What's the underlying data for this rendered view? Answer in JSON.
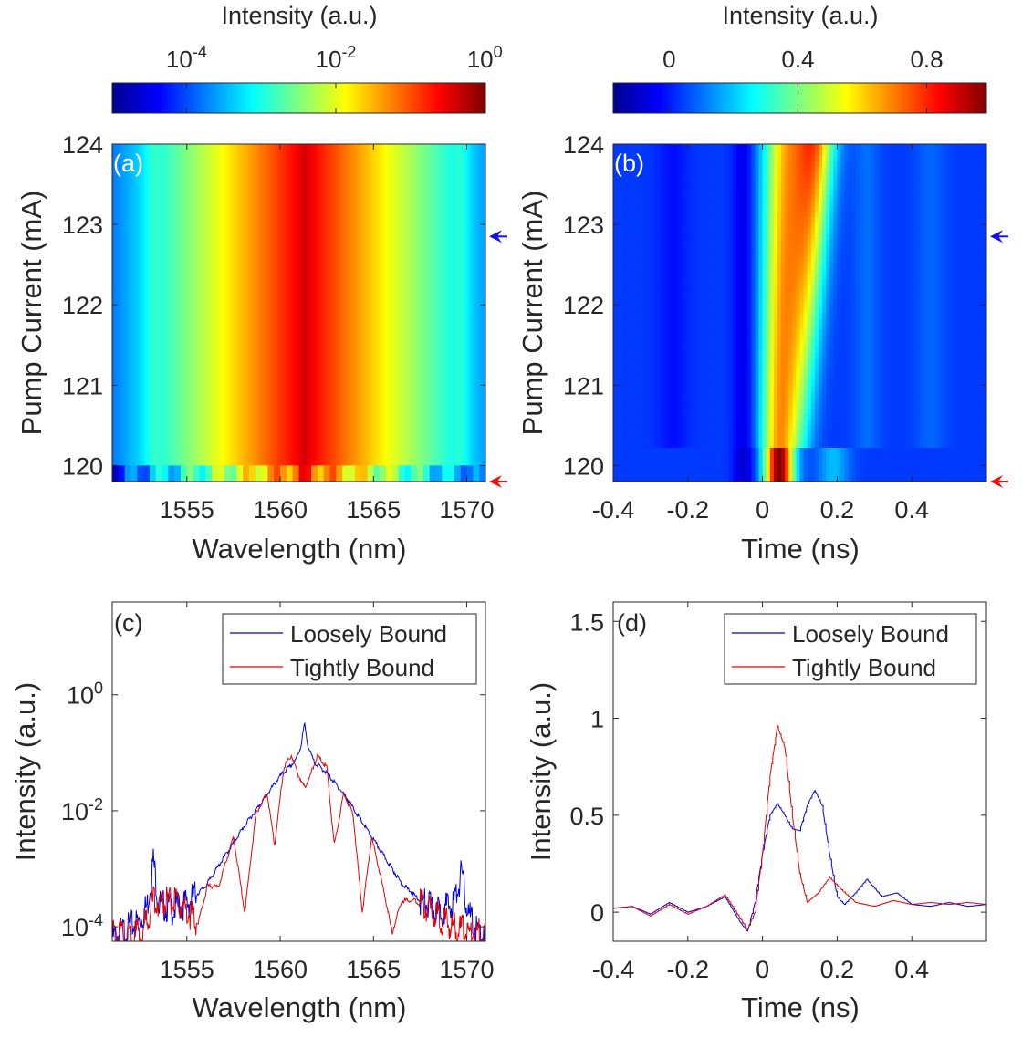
{
  "colorbars": [
    {
      "label": "Intensity (a.u.)",
      "ticks": [
        {
          "base": "10",
          "exp": "-4",
          "pos": 0.199
        },
        {
          "base": "10",
          "exp": "-2",
          "pos": 0.599
        },
        {
          "base": "10",
          "exp": "0",
          "pos": 0.998
        }
      ],
      "scale": "log",
      "range_text": "1e-4.8 to 1e0",
      "colormap": "jet"
    },
    {
      "label": "Intensity (a.u.)",
      "ticks": [
        {
          "text": "0",
          "pos": 0.15
        },
        {
          "text": "0.4",
          "pos": 0.495
        },
        {
          "text": "0.8",
          "pos": 0.84
        }
      ],
      "scale": "linear",
      "range": [
        -0.17,
        0.99
      ],
      "colormap": "jet"
    }
  ],
  "chart_data": [
    {
      "panel": "(a)",
      "type": "heatmap",
      "xlabel": "Wavelength (nm)",
      "ylabel": "Pump Current (mA)",
      "xlim": [
        1551,
        1571
      ],
      "ylim": [
        119.8,
        124
      ],
      "xticks": [
        "1555",
        "1560",
        "1565",
        "1570"
      ],
      "xtick_values": [
        1555,
        1560,
        1565,
        1570
      ],
      "yticks": [
        "120",
        "121",
        "122",
        "123",
        "124"
      ],
      "ytick_values": [
        120,
        121,
        122,
        123,
        124
      ],
      "peak_wavelength": 1561.3,
      "sideband_wavelengths": [
        1553.2,
        1569.7
      ],
      "colorscale": "log",
      "markers": [
        {
          "color": "#1010ee",
          "pump_current": 122.85
        },
        {
          "color": "#ee1010",
          "pump_current": 119.8
        }
      ]
    },
    {
      "panel": "(b)",
      "type": "heatmap",
      "xlabel": "Time (ns)",
      "ylabel": "Pump Current (mA)",
      "xlim": [
        -0.4,
        0.6
      ],
      "ylim": [
        119.8,
        124
      ],
      "xticks": [
        "-0.4",
        "-0.2",
        "0",
        "0.2",
        "0.4"
      ],
      "xtick_values": [
        -0.4,
        -0.2,
        0,
        0.2,
        0.4
      ],
      "yticks": [
        "120",
        "121",
        "122",
        "123",
        "124"
      ],
      "ytick_values": [
        120,
        121,
        122,
        123,
        124
      ],
      "colorscale": "linear",
      "markers": [
        {
          "color": "#1010ee",
          "pump_current": 122.85
        },
        {
          "color": "#ee1010",
          "pump_current": 119.8
        }
      ]
    },
    {
      "panel": "(c)",
      "type": "line",
      "xlabel": "Wavelength (nm)",
      "ylabel": "Intensity (a.u.)",
      "xlim": [
        1551,
        1571
      ],
      "ylim_log10": [
        -4.25,
        1.6
      ],
      "yscale": "log",
      "xticks": [
        "1555",
        "1560",
        "1565",
        "1570"
      ],
      "xtick_values": [
        1555,
        1560,
        1565,
        1570
      ],
      "yticks": [
        {
          "base": "10",
          "exp": "-4",
          "value": -4
        },
        {
          "base": "10",
          "exp": "-2",
          "value": -2
        },
        {
          "base": "10",
          "exp": "0",
          "value": 0
        }
      ],
      "legend_position": "top-right",
      "series": [
        {
          "name": "Loosely Bound",
          "color": "#0000e6",
          "x": [
            1551,
            1552.5,
            1552.9,
            1553.2,
            1553.5,
            1554.2,
            1555,
            1556,
            1557,
            1558,
            1559,
            1560,
            1560.8,
            1561.1,
            1561.3,
            1561.5,
            1561.8,
            1562.5,
            1563.5,
            1564.5,
            1565.5,
            1566.5,
            1567.5,
            1568.5,
            1569.3,
            1569.7,
            1570.1,
            1570.5,
            1571
          ],
          "log10_y": [
            -4.2,
            -3.9,
            -3.6,
            -2.85,
            -3.6,
            -3.7,
            -3.6,
            -3.3,
            -2.8,
            -2.3,
            -1.85,
            -1.4,
            -1.15,
            -0.9,
            -0.5,
            -0.9,
            -1.15,
            -1.35,
            -1.75,
            -2.25,
            -2.75,
            -3.25,
            -3.55,
            -3.75,
            -3.6,
            -3.1,
            -3.8,
            -4.05,
            -4.2
          ]
        },
        {
          "name": "Tightly Bound",
          "color": "#e60000",
          "x": [
            1551,
            1552.6,
            1553.2,
            1554,
            1554.8,
            1555.6,
            1556.1,
            1556.7,
            1557.5,
            1558.1,
            1558.7,
            1559.3,
            1559.7,
            1560.2,
            1560.6,
            1561.0,
            1561.3,
            1561.6,
            1562.0,
            1562.5,
            1562.9,
            1563.4,
            1563.9,
            1564.4,
            1564.9,
            1565.5,
            1566.0,
            1566.5,
            1567.2,
            1568,
            1569,
            1570,
            1571
          ],
          "log10_y": [
            -4.15,
            -4.1,
            -3.55,
            -3.55,
            -3.65,
            -3.95,
            -3.3,
            -3.3,
            -2.45,
            -3.75,
            -2.05,
            -1.7,
            -2.6,
            -1.25,
            -1.05,
            -1.4,
            -1.6,
            -1.4,
            -1.05,
            -1.25,
            -2.6,
            -1.7,
            -2.05,
            -3.75,
            -2.45,
            -3.3,
            -4.1,
            -3.55,
            -3.55,
            -3.7,
            -3.95,
            -4.1,
            -4.15
          ]
        }
      ]
    },
    {
      "panel": "(d)",
      "type": "line",
      "xlabel": "Time (ns)",
      "ylabel": "Intensity (a.u.)",
      "xlim": [
        -0.4,
        0.6
      ],
      "ylim": [
        -0.15,
        1.6
      ],
      "xticks": [
        "-0.4",
        "-0.2",
        "0",
        "0.2",
        "0.4"
      ],
      "xtick_values": [
        -0.4,
        -0.2,
        0,
        0.2,
        0.4
      ],
      "yticks": [
        "0",
        "0.5",
        "1",
        "1.5"
      ],
      "ytick_values": [
        0,
        0.5,
        1,
        1.5
      ],
      "legend_position": "top-right",
      "series": [
        {
          "name": "Loosely Bound",
          "color": "#0000e6",
          "x": [
            -0.4,
            -0.35,
            -0.3,
            -0.25,
            -0.2,
            -0.15,
            -0.1,
            -0.06,
            -0.04,
            -0.02,
            0,
            0.02,
            0.04,
            0.06,
            0.08,
            0.1,
            0.12,
            0.14,
            0.16,
            0.18,
            0.2,
            0.22,
            0.25,
            0.28,
            0.32,
            0.36,
            0.4,
            0.45,
            0.5,
            0.55,
            0.6
          ],
          "y": [
            0.02,
            0.03,
            -0.01,
            0.05,
            0.0,
            0.03,
            0.08,
            -0.05,
            -0.1,
            0.05,
            0.3,
            0.5,
            0.56,
            0.5,
            0.43,
            0.42,
            0.55,
            0.63,
            0.55,
            0.3,
            0.08,
            0.04,
            0.1,
            0.17,
            0.08,
            0.1,
            0.04,
            0.03,
            0.05,
            0.03,
            0.04
          ]
        },
        {
          "name": "Tightly Bound",
          "color": "#e60000",
          "x": [
            -0.4,
            -0.35,
            -0.3,
            -0.25,
            -0.2,
            -0.15,
            -0.1,
            -0.07,
            -0.04,
            -0.02,
            0,
            0.02,
            0.04,
            0.06,
            0.08,
            0.1,
            0.12,
            0.15,
            0.18,
            0.21,
            0.25,
            0.3,
            0.35,
            0.4,
            0.45,
            0.5,
            0.55,
            0.6
          ],
          "y": [
            0.02,
            0.03,
            -0.02,
            0.04,
            -0.01,
            0.03,
            0.09,
            0.0,
            -0.09,
            0.0,
            0.3,
            0.7,
            0.96,
            0.85,
            0.5,
            0.2,
            0.05,
            0.1,
            0.18,
            0.12,
            0.05,
            0.03,
            0.06,
            0.04,
            0.05,
            0.04,
            0.05,
            0.04
          ]
        }
      ]
    }
  ]
}
